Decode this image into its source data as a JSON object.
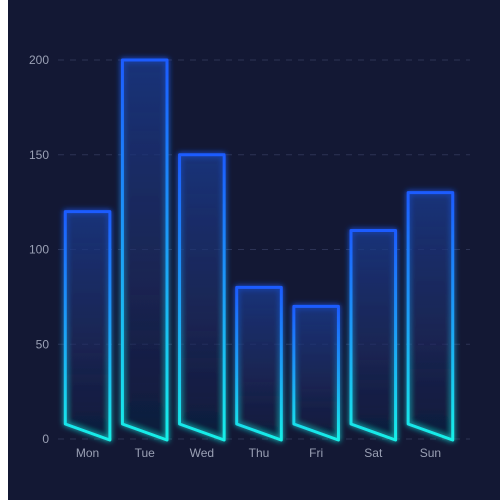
{
  "colors": {
    "background": "#131834",
    "bar_top": "#1a5cff",
    "bar_bottom": "#19f0e8",
    "axis_text": "#9aa0b4",
    "grid": "#2c3355"
  },
  "chart_data": {
    "type": "bar",
    "categories": [
      "Mon",
      "Tue",
      "Wed",
      "Thu",
      "Fri",
      "Sat",
      "Sun"
    ],
    "values": [
      120,
      200,
      150,
      80,
      70,
      110,
      130
    ],
    "ylim": [
      0,
      200
    ],
    "yticks": [
      "0",
      "50",
      "100",
      "150",
      "200"
    ],
    "grid": true,
    "legend": "none",
    "title": "",
    "xlabel": "",
    "ylabel": ""
  }
}
